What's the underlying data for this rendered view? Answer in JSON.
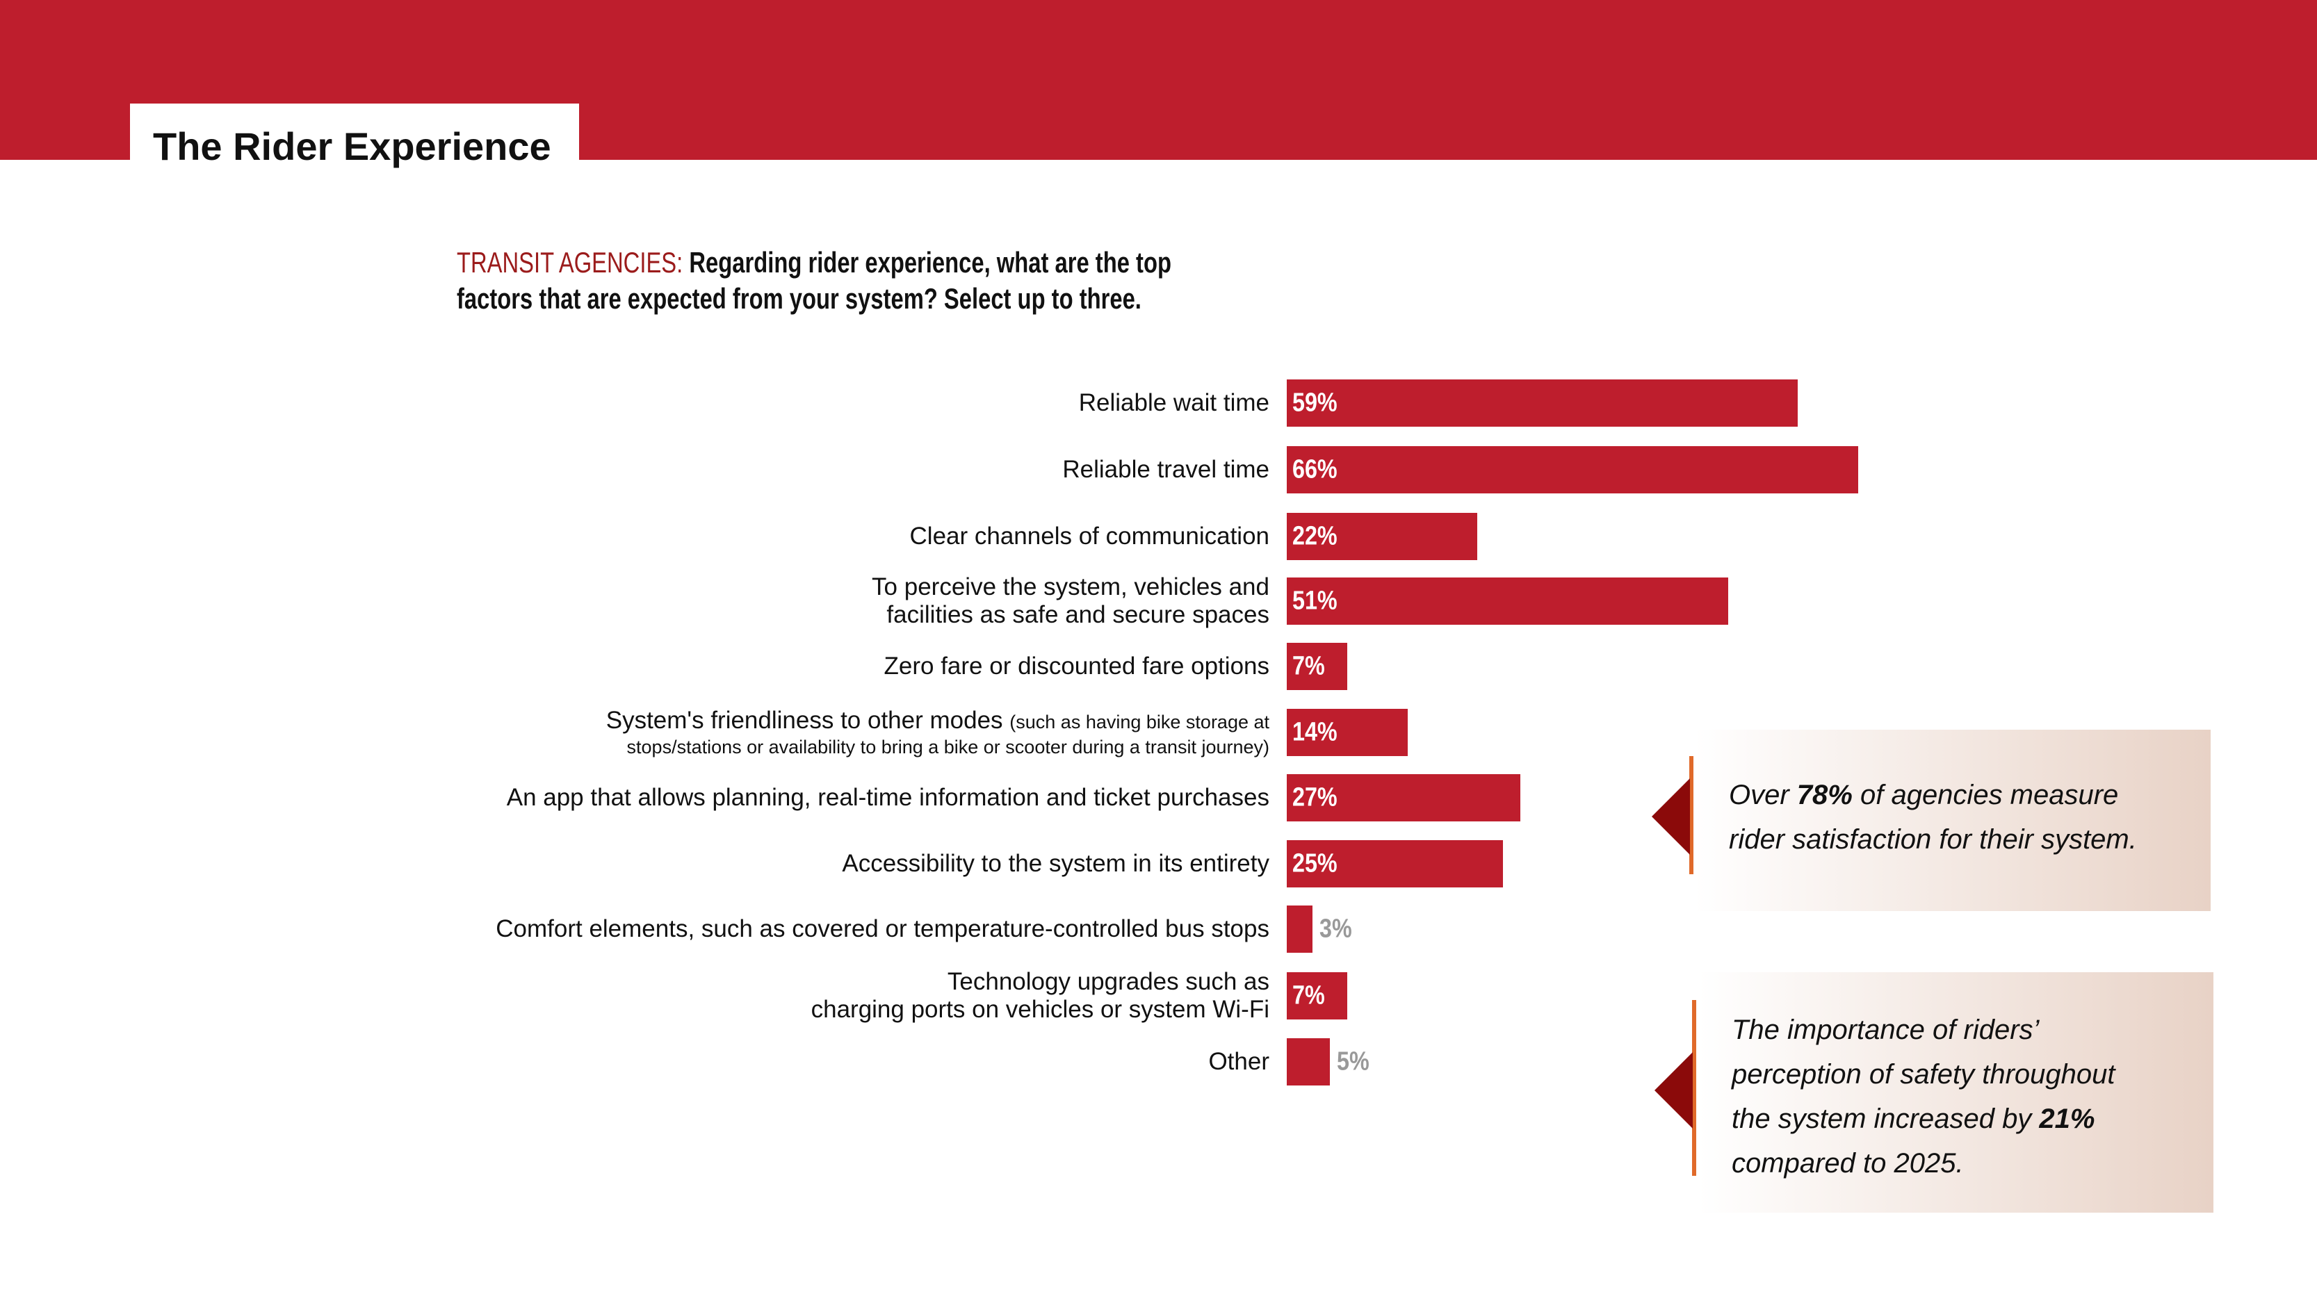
{
  "header": {
    "title": "The Rider Experience",
    "band_color": "#BE1E2D"
  },
  "question": {
    "prefix": "TRANSIT AGENCIES:",
    "text": "Regarding rider experience, what are the top factors that are expected from your system? Select up to three.",
    "prefix_color": "#9B1B1B"
  },
  "chart_data": {
    "type": "bar",
    "orientation": "horizontal",
    "bar_color": "#BE1E2D",
    "categories": [
      {
        "label": "Reliable wait time"
      },
      {
        "label": "Reliable travel time"
      },
      {
        "label": "Clear channels of communication"
      },
      {
        "label": "To perceive the system, vehicles and",
        "label_line2": "facilities as safe and secure spaces"
      },
      {
        "label": "Zero fare or discounted fare options"
      },
      {
        "label": "System's friendliness to other modes",
        "label_note": "(such as having bike storage at",
        "label_line2": "stops/stations or availability to bring a bike or scooter during a transit journey)"
      },
      {
        "label": "An app that allows planning, real-time information and ticket purchases"
      },
      {
        "label": "Accessibility to the system in its entirety"
      },
      {
        "label": "Comfort elements, such as covered or temperature-controlled bus stops"
      },
      {
        "label": "Technology upgrades such as",
        "label_line2": "charging ports on vehicles or system Wi-Fi"
      },
      {
        "label": "Other"
      }
    ],
    "values": [
      59,
      66,
      22,
      51,
      7,
      14,
      27,
      25,
      3,
      7,
      5
    ],
    "value_labels": [
      "59%",
      "66%",
      "22%",
      "51%",
      "7%",
      "14%",
      "27%",
      "25%",
      "3%",
      "7%",
      "5%"
    ],
    "xlabel": "",
    "ylabel": "",
    "grid": false
  },
  "callouts": [
    {
      "parts": [
        {
          "t": "Over "
        },
        {
          "t": "78%",
          "b": true
        },
        {
          "t": " of agencies measure"
        },
        {
          "br": true
        },
        {
          "t": "rider satisfaction for their system."
        }
      ]
    },
    {
      "parts": [
        {
          "t": "The importance of riders’"
        },
        {
          "br": true
        },
        {
          "t": "perception of safety throughout"
        },
        {
          "br": true
        },
        {
          "t": "the system increased by "
        },
        {
          "t": "21%",
          "b": true
        },
        {
          "br": true
        },
        {
          "t": "compared to 2025."
        }
      ]
    }
  ],
  "colors": {
    "accent_line": "#E06A2A",
    "arrow": "#8B0A0A",
    "callout_gradient_end": "#E8D2C6",
    "muted_value": "#999999"
  }
}
